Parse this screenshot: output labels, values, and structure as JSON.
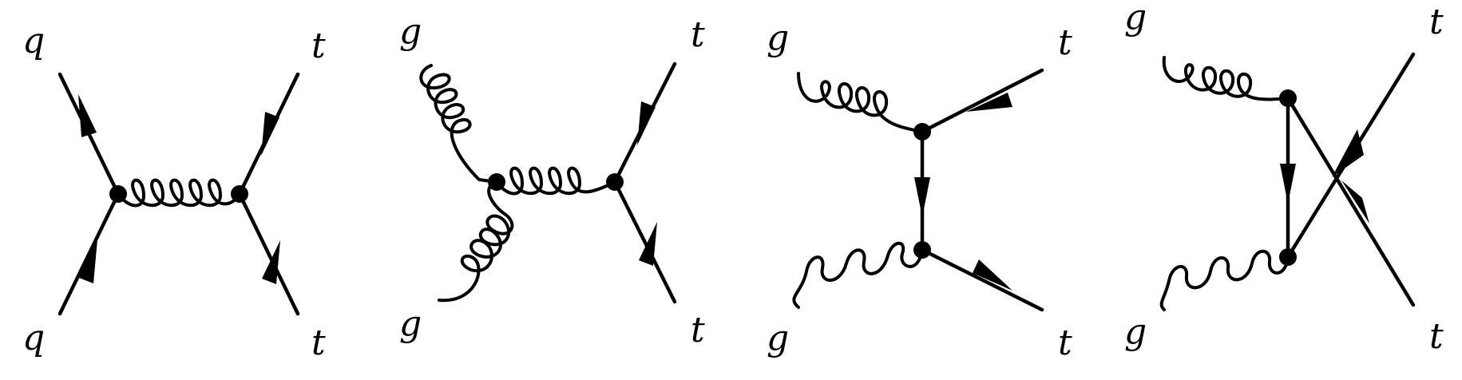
{
  "diagrams": [
    {
      "name": "quark-antiquark-annihilation",
      "labels": {
        "top_left": "q",
        "bottom_left": "q",
        "top_right": "t",
        "bottom_right": "t"
      }
    },
    {
      "name": "gluon-fusion-s-channel",
      "labels": {
        "top_left": "g",
        "bottom_left": "g",
        "top_right": "t",
        "bottom_right": "t"
      }
    },
    {
      "name": "gluon-fusion-t-channel",
      "labels": {
        "top_left": "g",
        "bottom_left": "g",
        "top_right": "t",
        "bottom_right": "t"
      }
    },
    {
      "name": "gluon-fusion-u-channel",
      "labels": {
        "top_left": "g",
        "bottom_left": "g",
        "top_right": "t",
        "bottom_right": "t"
      }
    }
  ]
}
